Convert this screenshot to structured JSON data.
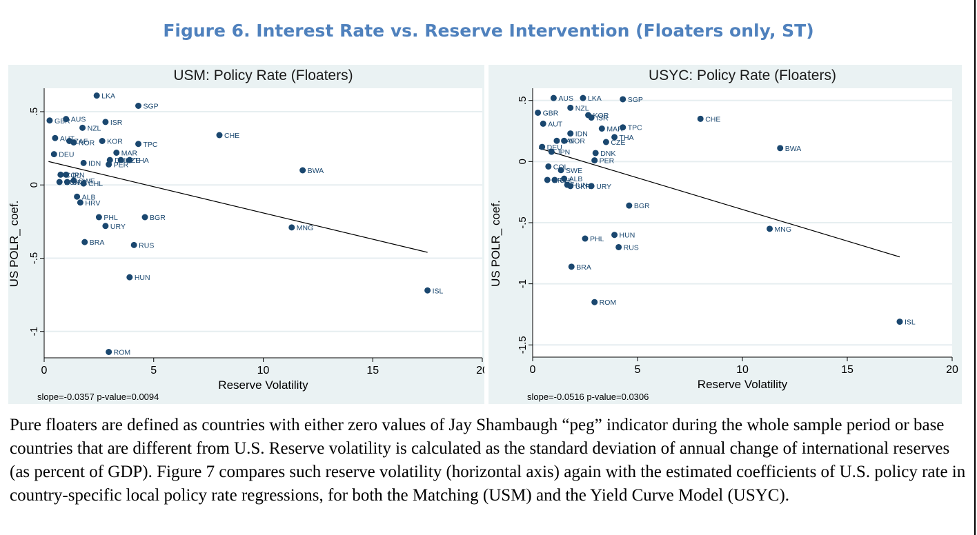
{
  "figure_title": "Figure 6. Interest Rate vs. Reserve Intervention (Floaters only, ST)",
  "caption": "Pure floaters are defined as countries with either zero values of Jay Shambaugh “peg” indicator during the whole sample period or base countries that are different from U.S. Reserve volatility is calculated as the standard deviation of annual change of international reserves (as percent of GDP). Figure 7 compares such reserve volatility (horizontal axis) again with the estimated coefficients of U.S. policy rate in country-specific local policy rate regressions, for both the Matching (USM) and the Yield Curve Model (USYC).",
  "colors": {
    "title": "#4f81bd",
    "panel_bg": "#eaf2f3",
    "point": "#1a476f",
    "fit_line": "#000000"
  },
  "chart_data": [
    {
      "type": "scatter",
      "title": "USM: Policy Rate (Floaters)",
      "xlabel": "Reserve Volatility",
      "ylabel": "US POLR_ coef.",
      "note": "slope=-0.0357 p-value=0.0094",
      "xlim": [
        0,
        20
      ],
      "ylim": [
        -1.18,
        0.66
      ],
      "xticks": [
        0,
        5,
        10,
        15,
        20
      ],
      "yticks": [
        -1,
        -0.5,
        0,
        0.5
      ],
      "ytick_labels": [
        "-1",
        "-.5",
        "0",
        ".5"
      ],
      "grid": true,
      "fit_line": {
        "x": [
          0.2,
          17.5
        ],
        "y": [
          0.16,
          -0.46
        ]
      },
      "points": [
        {
          "label": "LKA",
          "x": 2.4,
          "y": 0.61
        },
        {
          "label": "SGP",
          "x": 4.3,
          "y": 0.54
        },
        {
          "label": "GBR",
          "x": 0.25,
          "y": 0.44
        },
        {
          "label": "AUS",
          "x": 1.0,
          "y": 0.45
        },
        {
          "label": "ISR",
          "x": 2.8,
          "y": 0.43
        },
        {
          "label": "NZL",
          "x": 1.75,
          "y": 0.39
        },
        {
          "label": "CHE",
          "x": 8.0,
          "y": 0.34
        },
        {
          "label": "AUT",
          "x": 0.5,
          "y": 0.32
        },
        {
          "label": "ZAF",
          "x": 1.15,
          "y": 0.3
        },
        {
          "label": "NOR",
          "x": 1.35,
          "y": 0.29
        },
        {
          "label": "KOR",
          "x": 2.65,
          "y": 0.3
        },
        {
          "label": "TPC",
          "x": 4.3,
          "y": 0.28
        },
        {
          "label": "DEU",
          "x": 0.45,
          "y": 0.21
        },
        {
          "label": "MAR",
          "x": 3.3,
          "y": 0.22
        },
        {
          "label": "CZE",
          "x": 3.5,
          "y": 0.17
        },
        {
          "label": "THA",
          "x": 3.9,
          "y": 0.17
        },
        {
          "label": "DNK",
          "x": 3.0,
          "y": 0.17
        },
        {
          "label": "IDN",
          "x": 1.8,
          "y": 0.15
        },
        {
          "label": "PER",
          "x": 2.95,
          "y": 0.14
        },
        {
          "label": "BWA",
          "x": 11.8,
          "y": 0.1
        },
        {
          "label": "COL",
          "x": 0.75,
          "y": 0.07
        },
        {
          "label": "JPN",
          "x": 1.0,
          "y": 0.07
        },
        {
          "label": "SWE",
          "x": 1.35,
          "y": 0.03
        },
        {
          "label": "CHL",
          "x": 1.8,
          "y": 0.01
        },
        {
          "label": "HUN",
          "x": 0.7,
          "y": 0.02
        },
        {
          "label": "UKR",
          "x": 1.05,
          "y": 0.02
        },
        {
          "label": "ALB",
          "x": 1.5,
          "y": -0.08
        },
        {
          "label": "HRV",
          "x": 1.65,
          "y": -0.12
        },
        {
          "label": "PHL",
          "x": 2.5,
          "y": -0.22
        },
        {
          "label": "BGR",
          "x": 4.6,
          "y": -0.22
        },
        {
          "label": "URY",
          "x": 2.8,
          "y": -0.28
        },
        {
          "label": "MNG",
          "x": 11.3,
          "y": -0.29
        },
        {
          "label": "BRA",
          "x": 1.85,
          "y": -0.39
        },
        {
          "label": "RUS",
          "x": 4.1,
          "y": -0.41
        },
        {
          "label": "HUN",
          "x": 3.9,
          "y": -0.63
        },
        {
          "label": "ISL",
          "x": 17.5,
          "y": -0.72
        },
        {
          "label": "ROM",
          "x": 2.95,
          "y": -1.14
        }
      ]
    },
    {
      "type": "scatter",
      "title": "USYC: Policy Rate (Floaters)",
      "xlabel": "Reserve Volatility",
      "ylabel": "US POLR_ coef.",
      "note": "slope=-0.0516 p-value=0.0306",
      "xlim": [
        0,
        20
      ],
      "ylim": [
        -1.6,
        0.6
      ],
      "xticks": [
        0,
        5,
        10,
        15,
        20
      ],
      "yticks": [
        -1.5,
        -1,
        -0.5,
        0,
        0.5
      ],
      "ytick_labels": [
        "-1.5",
        "-1",
        "-.5",
        "0",
        ".5"
      ],
      "grid": true,
      "fit_line": {
        "x": [
          0.3,
          17.5
        ],
        "y": [
          0.11,
          -0.78
        ]
      },
      "points": [
        {
          "label": "AUS",
          "x": 1.0,
          "y": 0.52
        },
        {
          "label": "LKA",
          "x": 2.4,
          "y": 0.52
        },
        {
          "label": "SGP",
          "x": 4.3,
          "y": 0.51
        },
        {
          "label": "NZL",
          "x": 1.8,
          "y": 0.44
        },
        {
          "label": "GBR",
          "x": 0.25,
          "y": 0.4
        },
        {
          "label": "KOR",
          "x": 2.65,
          "y": 0.38
        },
        {
          "label": "ISR",
          "x": 2.8,
          "y": 0.36
        },
        {
          "label": "CHE",
          "x": 8.0,
          "y": 0.35
        },
        {
          "label": "AUT",
          "x": 0.5,
          "y": 0.31
        },
        {
          "label": "TPC",
          "x": 4.3,
          "y": 0.28
        },
        {
          "label": "MAR",
          "x": 3.3,
          "y": 0.27
        },
        {
          "label": "IDN",
          "x": 1.8,
          "y": 0.23
        },
        {
          "label": "THA",
          "x": 3.9,
          "y": 0.2
        },
        {
          "label": "NOR",
          "x": 1.5,
          "y": 0.17
        },
        {
          "label": "ZAF",
          "x": 1.15,
          "y": 0.17
        },
        {
          "label": "CZE",
          "x": 3.5,
          "y": 0.16
        },
        {
          "label": "DEU",
          "x": 0.45,
          "y": 0.12
        },
        {
          "label": "BWA",
          "x": 11.8,
          "y": 0.11
        },
        {
          "label": "JPN",
          "x": 0.9,
          "y": 0.08
        },
        {
          "label": "DNK",
          "x": 3.0,
          "y": 0.07
        },
        {
          "label": "PER",
          "x": 2.95,
          "y": 0.01
        },
        {
          "label": "COL",
          "x": 0.75,
          "y": -0.04
        },
        {
          "label": "SWE",
          "x": 1.35,
          "y": -0.07
        },
        {
          "label": "ALB",
          "x": 1.5,
          "y": -0.14
        },
        {
          "label": "HRV",
          "x": 0.7,
          "y": -0.15
        },
        {
          "label": "CHL",
          "x": 1.05,
          "y": -0.15
        },
        {
          "label": "HUN",
          "x": 1.65,
          "y": -0.19
        },
        {
          "label": "UKR",
          "x": 1.8,
          "y": -0.2
        },
        {
          "label": "URY",
          "x": 2.8,
          "y": -0.2
        },
        {
          "label": "BGR",
          "x": 4.6,
          "y": -0.36
        },
        {
          "label": "MNG",
          "x": 11.3,
          "y": -0.55
        },
        {
          "label": "HUN",
          "x": 3.9,
          "y": -0.6
        },
        {
          "label": "PHL",
          "x": 2.5,
          "y": -0.63
        },
        {
          "label": "RUS",
          "x": 4.1,
          "y": -0.7
        },
        {
          "label": "BRA",
          "x": 1.85,
          "y": -0.86
        },
        {
          "label": "ROM",
          "x": 2.95,
          "y": -1.15
        },
        {
          "label": "ISL",
          "x": 17.5,
          "y": -1.31
        }
      ]
    }
  ]
}
